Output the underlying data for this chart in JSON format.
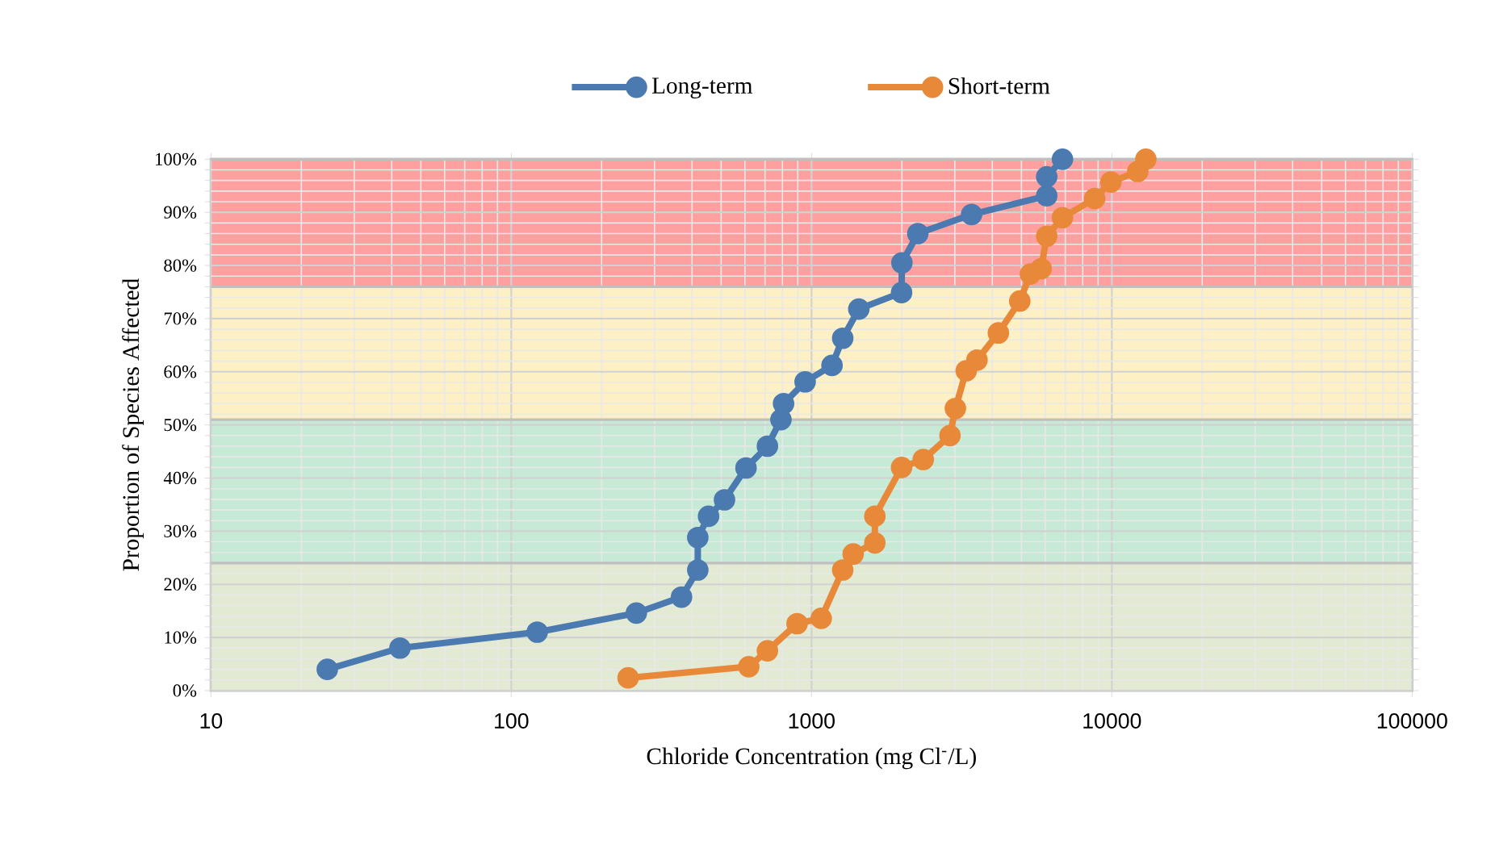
{
  "chart_data": {
    "type": "line",
    "xlabel": "Chloride Concentration (mg Cl$^{-}$/L)",
    "ylabel": "Proportion of Species Affected",
    "log": "x",
    "grid": true,
    "legend": "top",
    "marker": "circle",
    "line_style": "solid",
    "xlim": [
      10,
      100000
    ],
    "xticks": [
      10,
      100,
      1000,
      10000,
      100000
    ],
    "ylim": [
      0,
      100
    ],
    "yticks": [
      {
        "value": 0,
        "label": "0%"
      },
      {
        "value": 10,
        "label": "10%"
      },
      {
        "value": 20,
        "label": "20%"
      },
      {
        "value": 30,
        "label": "30%"
      },
      {
        "value": 40,
        "label": "40%"
      },
      {
        "value": 50,
        "label": "50%"
      },
      {
        "value": 60,
        "label": "60%"
      },
      {
        "value": 70,
        "label": "70%"
      },
      {
        "value": 80,
        "label": "80%"
      },
      {
        "value": 90,
        "label": "90%"
      },
      {
        "value": 100,
        "label": "100%"
      }
    ],
    "bands": [
      {
        "axis": "y",
        "from": 0,
        "to": 24,
        "color": "#e2ead3"
      },
      {
        "axis": "y",
        "from": 24,
        "to": 51,
        "color": "#c6ead6"
      },
      {
        "axis": "y",
        "from": 51,
        "to": 76,
        "color": "#fdf0c4"
      },
      {
        "axis": "y",
        "from": 76,
        "to": 100,
        "color": "#ffa0a0"
      }
    ],
    "series": [
      {
        "name": "Long-term",
        "color": "#4a7ab0",
        "x": [
          24.4,
          42.6,
          122,
          261,
          369,
          418,
          418,
          454,
          513,
          605,
          713,
          791,
          807,
          952,
          1170,
          1270,
          1437,
          1995,
          2000,
          2259,
          3412,
          6070,
          6070,
          6850
        ],
        "values": [
          4,
          8,
          11,
          14.6,
          17.6,
          22.7,
          28.8,
          32.8,
          35.9,
          41.9,
          46,
          51,
          54,
          58.1,
          61.2,
          66.3,
          71.8,
          74.9,
          80.5,
          86,
          89.6,
          93.1,
          96.7,
          100
        ]
      },
      {
        "name": "Short-term",
        "color": "#e8893a",
        "x": [
          245,
          618,
          713,
          895,
          1077,
          1270,
          1376,
          1625,
          1625,
          1995,
          2355,
          2891,
          3013,
          3275,
          3556,
          4190,
          4937,
          5355,
          5816,
          6070,
          6850,
          8770,
          9930,
          12200,
          12980
        ],
        "values": [
          2.4,
          4.5,
          7.5,
          12.6,
          13.6,
          22.7,
          25.7,
          27.8,
          32.8,
          42,
          43.5,
          48,
          53.1,
          60.2,
          62.2,
          67.3,
          73.3,
          78.4,
          79.4,
          85.5,
          89,
          92.6,
          95.7,
          97.7,
          100
        ]
      }
    ]
  }
}
